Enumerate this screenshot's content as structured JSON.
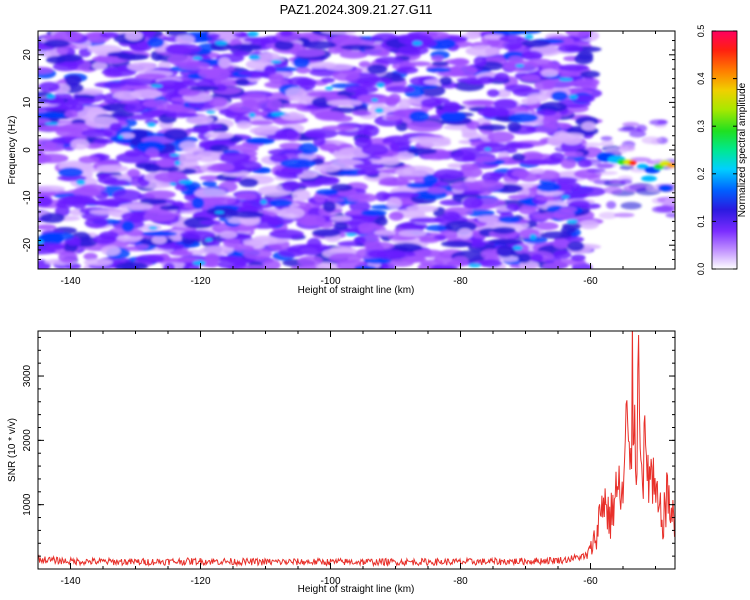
{
  "title": "PAZ1.2024.309.21.27.G11",
  "colors": {
    "spectrogram_palette": [
      "#ffffff",
      "#d8b3ff",
      "#a050ff",
      "#6a1dff",
      "#2a1ad8",
      "#0040ff",
      "#00b8ff",
      "#00e8a0",
      "#20e020",
      "#d8e800",
      "#ffa000",
      "#ff2000",
      "#ff0060"
    ],
    "snr_line": "#e8302a"
  },
  "chart_data": [
    {
      "type": "heatmap",
      "title": "PAZ1.2024.309.21.27.G11",
      "xlabel": "Height of straight line (km)",
      "ylabel": "Frequency (Hz)",
      "xlim": [
        -145,
        -47
      ],
      "ylim": [
        -25,
        25
      ],
      "xticks": [
        -140,
        -120,
        -100,
        -80,
        -60
      ],
      "yticks": [
        -20,
        -10,
        0,
        10,
        20
      ],
      "colorbar": {
        "label": "Normalized spectral amplitude",
        "range": [
          0.0,
          0.5
        ],
        "ticks": [
          0.0,
          0.1,
          0.2,
          0.3,
          0.4,
          0.5
        ]
      },
      "signal_region": {
        "x_range": [
          -60,
          -47
        ],
        "frequency_center_hz": -4,
        "peak_amplitude": 0.5
      }
    },
    {
      "type": "line",
      "xlabel": "Height of straight line (km)",
      "ylabel": "SNR (10 * v/v)",
      "xlim": [
        -145,
        -47
      ],
      "ylim": [
        0,
        3700
      ],
      "xticks": [
        -140,
        -120,
        -100,
        -80,
        -60
      ],
      "yticks": [
        1000,
        2000,
        3000
      ],
      "series": [
        {
          "x": [
            -145,
            -140,
            -130,
            -120,
            -110,
            -100,
            -90,
            -80,
            -70,
            -64,
            -61,
            -60,
            -59,
            -58,
            -57,
            -56,
            -55,
            -54.5,
            -54,
            -53.5,
            -53,
            -52.5,
            -52,
            -51,
            -50,
            -49,
            -48,
            -47
          ],
          "y": [
            150,
            120,
            110,
            120,
            110,
            110,
            110,
            110,
            120,
            140,
            200,
            350,
            700,
            1400,
            900,
            1500,
            1300,
            2600,
            1800,
            3500,
            2400,
            3700,
            2200,
            1800,
            1300,
            900,
            1400,
            700
          ]
        }
      ]
    }
  ]
}
